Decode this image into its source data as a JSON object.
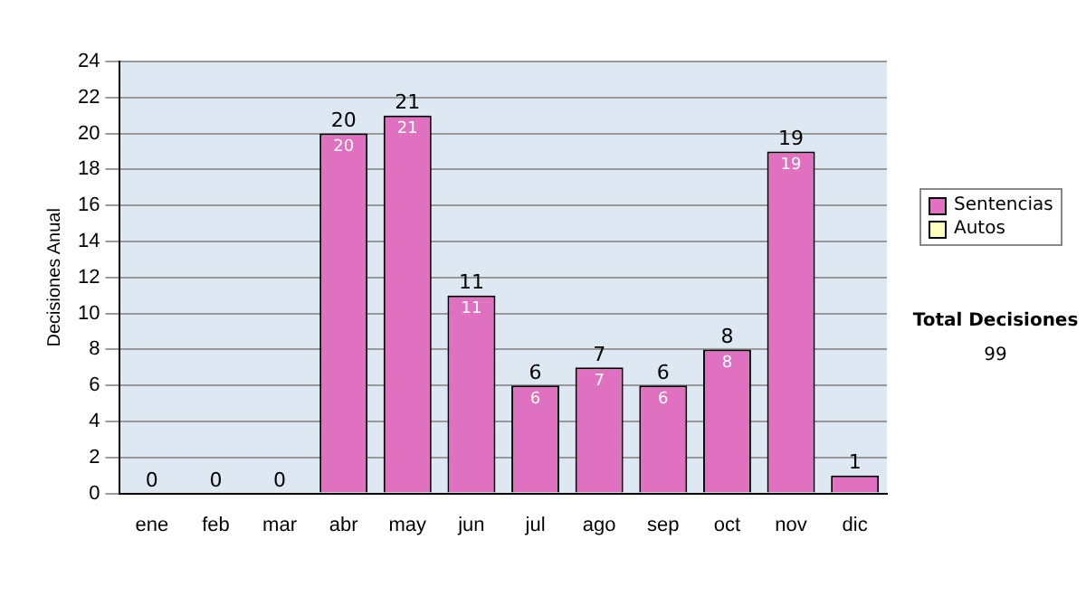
{
  "chart_data": {
    "type": "bar",
    "stacked": true,
    "ylabel": "Decisiones Anual",
    "categories": [
      "ene",
      "feb",
      "mar",
      "abr",
      "may",
      "jun",
      "jul",
      "ago",
      "sep",
      "oct",
      "nov",
      "dic"
    ],
    "series": [
      {
        "name": "Sentencias",
        "color": "#e070c0",
        "values": [
          0,
          0,
          0,
          20,
          21,
          11,
          6,
          7,
          6,
          8,
          19,
          1
        ],
        "value_labels": [
          null,
          null,
          null,
          "20",
          "21",
          "11",
          "6",
          "7",
          "6",
          "8",
          "19",
          null
        ]
      },
      {
        "name": "Autos",
        "color": "#ffffc0",
        "values": [
          0,
          0,
          0,
          0,
          0,
          0,
          0,
          0,
          0,
          0,
          0,
          0
        ]
      }
    ],
    "totals": [
      "0",
      "0",
      "0",
      "20",
      "21",
      "11",
      "6",
      "7",
      "6",
      "8",
      "19",
      "1"
    ],
    "ylim": [
      0,
      24
    ],
    "yticks": [
      0,
      2,
      4,
      6,
      8,
      10,
      12,
      14,
      16,
      18,
      20,
      22,
      24
    ],
    "grid": "y",
    "legend": "right",
    "annotations": [
      "Total Decisiones",
      "99"
    ]
  }
}
